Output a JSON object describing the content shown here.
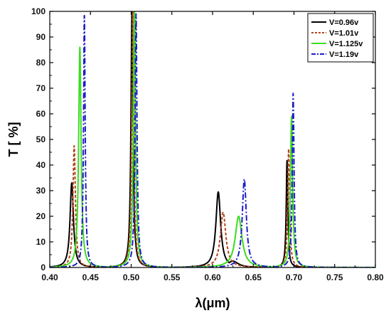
{
  "chart_data": {
    "type": "line",
    "xlabel": "λ(μm)",
    "ylabel": "T [ %]",
    "xlim": [
      0.4,
      0.8
    ],
    "ylim": [
      0,
      100
    ],
    "xticks": [
      "0.40",
      "0.45",
      "0.50",
      "0.55",
      "0.60",
      "0.65",
      "0.70",
      "0.75",
      "0.80"
    ],
    "yticks": [
      "0",
      "10",
      "20",
      "30",
      "40",
      "50",
      "60",
      "70",
      "80",
      "90",
      "100"
    ],
    "grid": false,
    "legend_position": "top-right",
    "series": [
      {
        "name": "V=0.96v",
        "color": "#000000",
        "style": "solid",
        "peaks": [
          {
            "x": 0.427,
            "height": 33,
            "width": 0.0025
          },
          {
            "x": 0.501,
            "height": 100,
            "width": 0.0015
          },
          {
            "x": 0.607,
            "height": 29.5,
            "width": 0.0035
          },
          {
            "x": 0.625,
            "height": 2.5,
            "width": 0.008
          },
          {
            "x": 0.6915,
            "height": 42,
            "width": 0.0012
          }
        ]
      },
      {
        "name": "V=1.01v",
        "color": "#b5441b",
        "style": "dash",
        "peaks": [
          {
            "x": 0.43,
            "height": 47.5,
            "width": 0.0018
          },
          {
            "x": 0.502,
            "height": 100,
            "width": 0.0015
          },
          {
            "x": 0.613,
            "height": 21.5,
            "width": 0.004
          },
          {
            "x": 0.6935,
            "height": 46.5,
            "width": 0.0014
          }
        ]
      },
      {
        "name": "V=1.125v",
        "color": "#3cdc1e",
        "style": "solid",
        "peaks": [
          {
            "x": 0.437,
            "height": 86,
            "width": 0.0018
          },
          {
            "x": 0.504,
            "height": 100,
            "width": 0.0016
          },
          {
            "x": 0.632,
            "height": 20,
            "width": 0.005
          },
          {
            "x": 0.697,
            "height": 59,
            "width": 0.0016
          }
        ]
      },
      {
        "name": "V=1.19v",
        "color": "#1c1cc8",
        "style": "dashdot",
        "peaks": [
          {
            "x": 0.4425,
            "height": 99,
            "width": 0.0012
          },
          {
            "x": 0.506,
            "height": 99,
            "width": 0.0014
          },
          {
            "x": 0.639,
            "height": 34.5,
            "width": 0.003
          },
          {
            "x": 0.699,
            "height": 68,
            "width": 0.0013
          }
        ]
      }
    ]
  }
}
